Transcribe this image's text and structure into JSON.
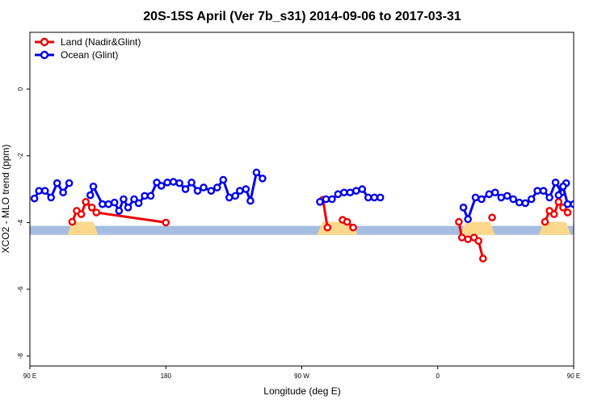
{
  "chart_data": {
    "type": "line",
    "title": "20S-15S April (Ver 7b_s31)   2014-09-06 to 2017-03-31",
    "xlabel": "Longitude (deg E)",
    "ylabel": "XCO2 - MLO trend (ppm)",
    "xlim": [
      90,
      450
    ],
    "ylim": [
      -8.3,
      1.7
    ],
    "x_ticks": [
      {
        "value": 90,
        "label": "90 E"
      },
      {
        "value": 180,
        "label": "180"
      },
      {
        "value": 270,
        "label": "90 W"
      },
      {
        "value": 360,
        "label": "0"
      },
      {
        "value": 450,
        "label": "90 E"
      },
      {
        "value": 540,
        "label": "180"
      }
    ],
    "y_ticks": [
      {
        "value": 0,
        "label": "0"
      },
      {
        "value": -2,
        "label": "-2"
      },
      {
        "value": -4,
        "label": "-4"
      },
      {
        "value": -6,
        "label": "-6"
      },
      {
        "value": -8,
        "label": "-8"
      }
    ],
    "legend_position": "top-left",
    "series": [
      {
        "name": "Land (Nadir&Glint)",
        "color": "#ee0000",
        "segments": [
          [
            [
              118,
              -3.98
            ],
            [
              121,
              -3.65
            ],
            [
              124,
              -3.75
            ],
            [
              127,
              -3.38
            ],
            [
              131,
              -3.55
            ],
            [
              134,
              -3.7
            ],
            [
              180,
              -4.0
            ]
          ],
          [
            [
              284,
              -3.32
            ],
            [
              287,
              -4.15
            ]
          ],
          [
            [
              297,
              -3.92
            ],
            [
              300,
              -3.98
            ],
            [
              304,
              -4.15
            ]
          ],
          [
            [
              374,
              -3.98
            ],
            [
              376,
              -4.45
            ],
            [
              380,
              -4.5
            ],
            [
              384,
              -4.45
            ],
            [
              387,
              -4.55
            ],
            [
              390,
              -5.08
            ]
          ],
          [
            [
              396,
              -3.85
            ]
          ],
          [
            [
              431,
              -3.98
            ],
            [
              434,
              -3.65
            ],
            [
              437,
              -3.75
            ],
            [
              440,
              -3.38
            ],
            [
              443,
              -3.55
            ],
            [
              446,
              -3.7
            ]
          ]
        ]
      },
      {
        "name": "Ocean (Glint)",
        "color": "#0000ee",
        "segments": [
          [
            [
              93,
              -3.28
            ],
            [
              96,
              -3.05
            ],
            [
              100,
              -3.05
            ],
            [
              104,
              -3.25
            ],
            [
              108,
              -2.82
            ],
            [
              112,
              -3.1
            ],
            [
              116,
              -2.82
            ]
          ],
          [
            [
              130,
              -3.18
            ],
            [
              132,
              -2.92
            ],
            [
              138,
              -3.45
            ],
            [
              142,
              -3.45
            ],
            [
              146,
              -3.4
            ],
            [
              149,
              -3.65
            ],
            [
              152,
              -3.3
            ],
            [
              155,
              -3.55
            ],
            [
              159,
              -3.3
            ],
            [
              162,
              -3.42
            ],
            [
              166,
              -3.2
            ],
            [
              170,
              -3.2
            ],
            [
              174,
              -2.8
            ],
            [
              177,
              -2.9
            ],
            [
              181,
              -2.8
            ],
            [
              185,
              -2.78
            ],
            [
              189,
              -2.82
            ],
            [
              193,
              -3.0
            ],
            [
              197,
              -2.8
            ],
            [
              201,
              -3.05
            ],
            [
              205,
              -2.95
            ],
            [
              210,
              -3.05
            ],
            [
              214,
              -2.95
            ],
            [
              218,
              -2.72
            ],
            [
              222,
              -3.25
            ],
            [
              226,
              -3.2
            ],
            [
              229,
              -3.05
            ],
            [
              233,
              -3.0
            ],
            [
              236,
              -3.35
            ],
            [
              240,
              -2.5
            ],
            [
              244,
              -2.68
            ]
          ],
          [
            [
              282,
              -3.38
            ],
            [
              286,
              -3.3
            ],
            [
              290,
              -3.3
            ],
            [
              294,
              -3.15
            ],
            [
              298,
              -3.1
            ],
            [
              302,
              -3.1
            ],
            [
              306,
              -3.05
            ],
            [
              310,
              -3.0
            ],
            [
              314,
              -3.25
            ],
            [
              318,
              -3.25
            ],
            [
              322,
              -3.25
            ]
          ],
          [
            [
              377,
              -3.55
            ],
            [
              380,
              -3.9
            ],
            [
              385,
              -3.25
            ],
            [
              389,
              -3.3
            ],
            [
              394,
              -3.15
            ],
            [
              398,
              -3.1
            ],
            [
              402,
              -3.25
            ],
            [
              406,
              -3.2
            ],
            [
              410,
              -3.3
            ],
            [
              414,
              -3.4
            ],
            [
              418,
              -3.42
            ],
            [
              422,
              -3.3
            ],
            [
              426,
              -3.05
            ],
            [
              430,
              -3.05
            ],
            [
              434,
              -3.25
            ],
            [
              438,
              -2.8
            ],
            [
              442,
              -3.1
            ],
            [
              445,
              -2.82
            ]
          ],
          [
            [
              440,
              -3.18
            ],
            [
              443,
              -2.92
            ],
            [
              446,
              -3.45
            ],
            [
              450,
              -3.45
            ],
            [
              454,
              -3.4
            ],
            [
              457,
              -3.65
            ],
            [
              460,
              -3.3
            ],
            [
              463,
              -3.55
            ],
            [
              467,
              -3.3
            ]
          ]
        ]
      }
    ],
    "background_bands": [
      {
        "kind": "ocean",
        "color": "#a5bde0",
        "y_range": [
          -4.37,
          -4.1
        ],
        "x_range": [
          90,
          450
        ]
      },
      {
        "kind": "land",
        "color": "#fcd88b",
        "x_ranges": [
          [
            115,
            135
          ],
          [
            280,
            307
          ],
          [
            375,
            398
          ],
          [
            427,
            448
          ]
        ]
      }
    ]
  }
}
